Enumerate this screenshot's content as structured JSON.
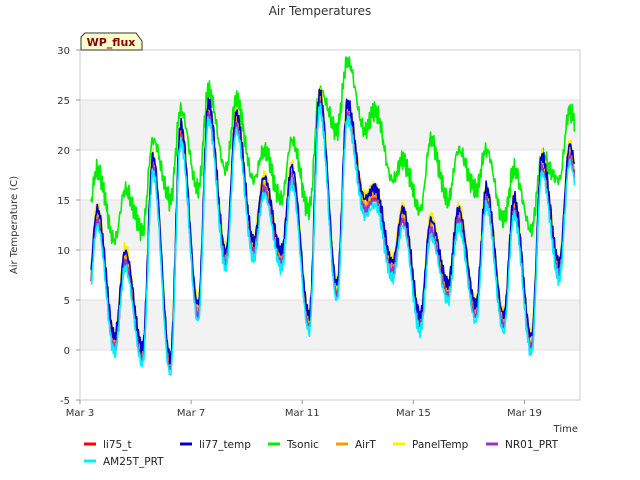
{
  "chart_data": {
    "type": "line",
    "title": "Air Temperatures",
    "badge": "WP_flux",
    "xlabel": "Time",
    "ylabel": "Air Temperature (C)",
    "ylim": [
      -5,
      30
    ],
    "yticks": [
      -5,
      0,
      5,
      10,
      15,
      20,
      25,
      30
    ],
    "xlim": [
      "Mar 3",
      "Mar 21"
    ],
    "xticks": [
      "Mar 3",
      "Mar 7",
      "Mar 11",
      "Mar 15",
      "Mar 19"
    ],
    "x_range_days": [
      3,
      21
    ],
    "xtick_days": [
      3,
      7,
      11,
      15,
      19
    ],
    "data_span_days": [
      3.4,
      20.8
    ],
    "grid": "horizontal bands",
    "legend_position": "bottom",
    "series": [
      {
        "name": "li75_t",
        "color": "#ff0000",
        "offset": 0.0,
        "style": "base"
      },
      {
        "name": "li77_temp",
        "color": "#0000cc",
        "offset": 0.8,
        "style": "base"
      },
      {
        "name": "Tsonic",
        "color": "#00ee00",
        "style": "tsonic"
      },
      {
        "name": "AirT",
        "color": "#ff9900",
        "offset": 0.3,
        "style": "base"
      },
      {
        "name": "PanelTemp",
        "color": "#ffee00",
        "offset": 1.0,
        "style": "base"
      },
      {
        "name": "NR01_PRT",
        "color": "#9933cc",
        "offset": -0.4,
        "style": "base"
      },
      {
        "name": "AM25T_PRT",
        "color": "#00eeff",
        "offset": -0.9,
        "style": "base"
      }
    ],
    "daily_cycle": {
      "days": [
        3.5,
        4.5,
        5.5,
        6.5,
        7.5,
        8.5,
        9.5,
        10.5,
        11.5,
        12.5,
        13.5,
        14.5,
        15.5,
        16.5,
        17.5,
        18.5,
        19.5,
        20.5
      ],
      "min_temp": [
        4,
        1,
        0,
        -1,
        4,
        9,
        10,
        9,
        3,
        6,
        14,
        8,
        3,
        6,
        4,
        3,
        1,
        8
      ],
      "max_temp": [
        13,
        9,
        18,
        21,
        23,
        22,
        16,
        17,
        24,
        23,
        15,
        13,
        12,
        13,
        15,
        14,
        18,
        19
      ],
      "tsonic_min": [
        13,
        11,
        12,
        15,
        16,
        18,
        17,
        15,
        14,
        22,
        22,
        17,
        14,
        15,
        16,
        13,
        12,
        17
      ],
      "tsonic_max": [
        18,
        16,
        21,
        24,
        26,
        25,
        20,
        21,
        26,
        29,
        24,
        19,
        21,
        20,
        20,
        18,
        19,
        24
      ]
    }
  }
}
